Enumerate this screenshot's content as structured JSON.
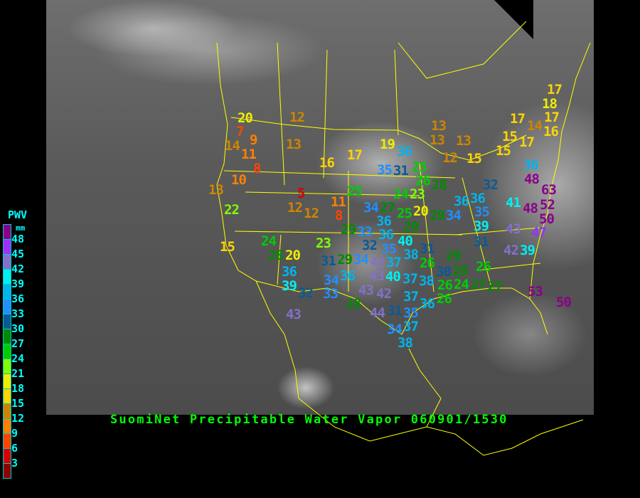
{
  "title": "SuomiNet Precipitable Water Vapor 060901/1530",
  "legend": {
    "title": "PWV",
    "unit": "mm",
    "labels": [
      "48",
      "45",
      "42",
      "39",
      "36",
      "33",
      "30",
      "27",
      "24",
      "21",
      "18",
      "15",
      "12",
      "9",
      "6",
      "3"
    ],
    "colors": [
      "#8b008b",
      "#9b30ff",
      "#8470cc",
      "#00f0f0",
      "#00b4ec",
      "#1e90ff",
      "#0a5a96",
      "#008b00",
      "#00cd00",
      "#7fff00",
      "#eeee00",
      "#ffd400",
      "#cd8500",
      "#ff8000",
      "#ff4500",
      "#d70000",
      "#8b0000"
    ]
  },
  "map_colors": {
    "borders": "#ffff00",
    "title_color": "#00ff00",
    "legend_text": "#00ffff"
  },
  "stations": [
    20,
    7,
    14,
    9,
    11,
    12,
    13,
    8,
    10,
    13,
    16,
    17,
    25,
    5,
    12,
    12,
    11,
    8,
    22,
    29,
    24,
    28,
    20,
    23,
    15,
    36,
    39,
    32,
    31,
    43,
    33,
    36,
    36,
    32,
    35,
    40,
    37,
    38,
    31,
    29,
    34,
    42,
    40,
    26,
    29,
    36,
    37,
    38,
    30,
    28,
    26,
    26,
    24,
    27,
    34,
    33,
    43,
    42,
    43,
    28,
    37,
    36,
    44,
    31,
    35,
    37,
    34,
    38,
    19,
    36,
    35,
    31,
    25,
    26,
    28,
    24,
    23,
    34,
    27,
    20,
    29,
    34,
    25,
    29,
    36,
    17,
    18,
    17,
    17,
    14,
    16,
    15,
    17,
    15,
    13,
    13,
    13,
    12,
    15,
    36,
    48,
    63,
    32,
    36,
    35,
    41,
    48,
    52,
    50,
    39,
    43,
    47,
    31,
    42,
    39,
    26,
    53,
    50,
    27
  ]
}
